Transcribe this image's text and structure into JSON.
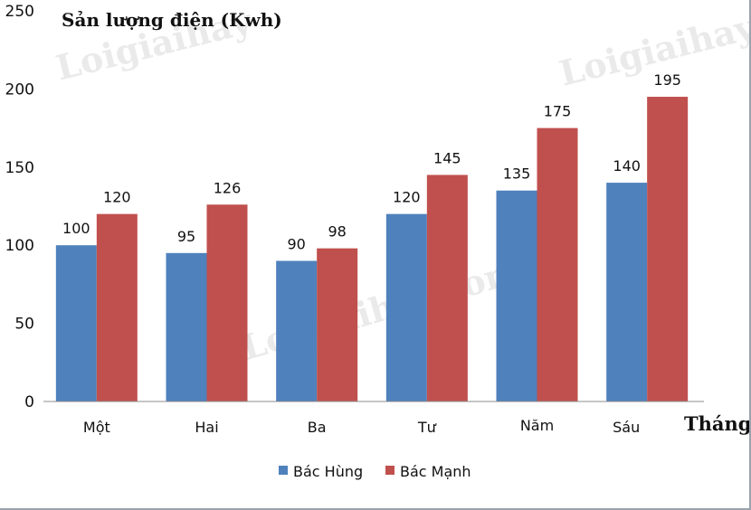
{
  "chart_data": {
    "type": "bar",
    "title": "Sản lượng điện (Kwh)",
    "xlabel": "Tháng",
    "ylabel": "",
    "categories": [
      "Một",
      "Hai",
      "Ba",
      "Tư",
      "Năm",
      "Sáu"
    ],
    "series": [
      {
        "name": "Bác Hùng",
        "values": [
          100,
          95,
          90,
          120,
          135,
          140
        ],
        "color": "#4f81bd"
      },
      {
        "name": "Bác Mạnh",
        "values": [
          120,
          126,
          98,
          145,
          175,
          195
        ],
        "color": "#c0504d"
      }
    ],
    "ylim": [
      0,
      250
    ],
    "yticks": [
      0,
      50,
      100,
      150,
      200,
      250
    ],
    "grid": false,
    "legend_position": "bottom"
  },
  "watermark_text": [
    "Loigiaihay",
    "Loigiaihay.com",
    "Loigiaihay"
  ]
}
